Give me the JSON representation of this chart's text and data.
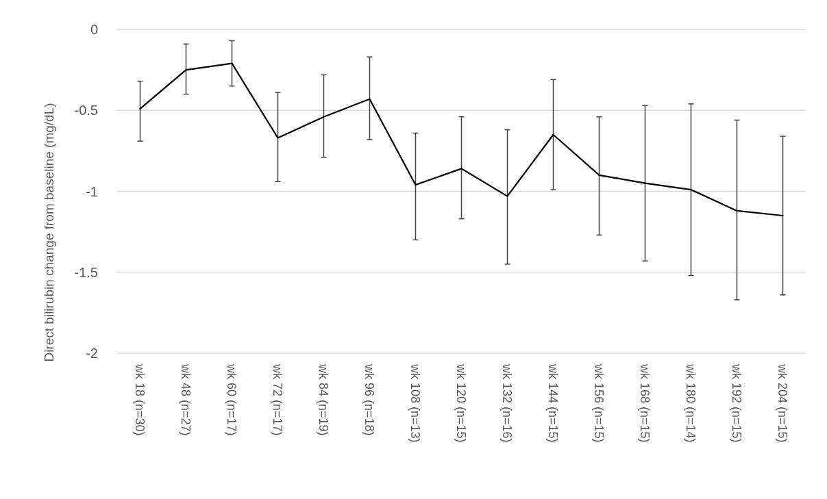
{
  "chart_data": {
    "type": "line",
    "ylabel": "Direct bilirubin change from baseline (mg/dL)",
    "categories": [
      "wk 18 (n=30)",
      "wk 48 (n=27)",
      "wk 60 (n=17)",
      "wk 72 (n=17)",
      "wk 84 (n=19)",
      "wk 96 (n=18)",
      "wk 108 (n=13)",
      "wk 120 (n=15)",
      "wk 132 (n=16)",
      "wk 144 (n=15)",
      "wk 156 (n=15)",
      "wk 168 (n=15)",
      "wk 180 (n=14)",
      "wk 192 (n=15)",
      "wk 204 (n=15)"
    ],
    "series": [
      {
        "color": "#000000",
        "values": [
          -0.49,
          -0.25,
          -0.21,
          -0.67,
          -0.54,
          -0.43,
          -0.96,
          -0.86,
          -1.03,
          -0.65,
          -0.9,
          -0.95,
          -0.99,
          -1.12,
          -1.15
        ],
        "errors": [
          [
            -0.69,
            -0.32
          ],
          [
            -0.4,
            -0.09
          ],
          [
            -0.35,
            -0.07
          ],
          [
            -0.94,
            -0.39
          ],
          [
            -0.79,
            -0.28
          ],
          [
            -0.68,
            -0.17
          ],
          [
            -1.3,
            -0.64
          ],
          [
            -1.17,
            -0.54
          ],
          [
            -1.45,
            -0.62
          ],
          [
            -0.99,
            -0.31
          ],
          [
            -1.27,
            -0.54
          ],
          [
            -1.43,
            -0.47
          ],
          [
            -1.52,
            -0.46
          ],
          [
            -1.67,
            -0.56
          ],
          [
            -1.64,
            -0.66
          ]
        ]
      }
    ],
    "ylim": [
      -2,
      0
    ],
    "yticks": [
      -2,
      -1.5,
      -1,
      -0.5,
      0
    ],
    "grid": "y"
  }
}
